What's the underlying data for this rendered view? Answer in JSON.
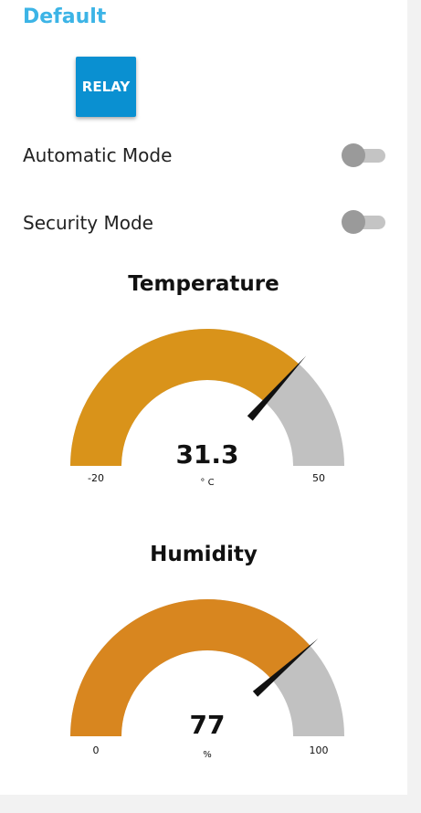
{
  "group": {
    "title": "Default"
  },
  "relay": {
    "label": "RELAY",
    "color": "#0a90d1"
  },
  "switches": [
    {
      "label": "Automatic Mode",
      "on": false
    },
    {
      "label": "Security Mode",
      "on": false
    }
  ],
  "gauges": [
    {
      "title": "Temperature",
      "value": 31.3,
      "value_text": "31.3",
      "units": "° C",
      "min": -20,
      "max": 50,
      "min_text": "-20",
      "max_text": "50",
      "color": "#d9931a"
    },
    {
      "title": "Humidity",
      "value": 77,
      "value_text": "77",
      "units": "%",
      "min": 0,
      "max": 100,
      "min_text": "0",
      "max_text": "100",
      "color": "#d8861f"
    }
  ]
}
